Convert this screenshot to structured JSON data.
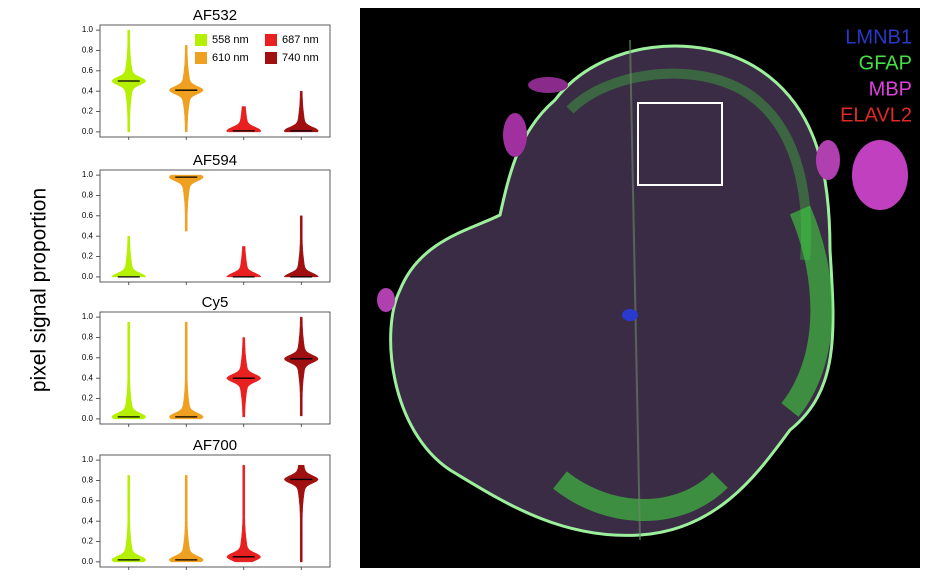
{
  "figure": {
    "ylabel": "pixel signal proportion"
  },
  "chart_data": [
    {
      "type": "violin",
      "title": "AF532",
      "ylim": [
        -0.05,
        1.05
      ],
      "yticks": [
        {
          "value": 0,
          "label": "0.0"
        },
        0.2,
        0.4,
        0.6,
        0.8,
        {
          "value": 1,
          "label": "1.0"
        }
      ],
      "violins": [
        {
          "name": "558 nm",
          "color": "#b4f000",
          "median": 0.5,
          "min": 0,
          "max": 1.0
        },
        {
          "name": "610 nm",
          "color": "#f0a020",
          "median": 0.41,
          "min": 0,
          "max": 0.85
        },
        {
          "name": "687 nm",
          "color": "#e82020",
          "median": 0.01,
          "min": 0,
          "max": 0.25
        },
        {
          "name": "740 nm",
          "color": "#a01010",
          "median": 0.01,
          "min": 0,
          "max": 0.4
        }
      ]
    },
    {
      "type": "violin",
      "title": "AF594",
      "ylim": [
        -0.05,
        1.05
      ],
      "yticks": [
        {
          "value": 0,
          "label": "0.0"
        },
        0.2,
        0.4,
        0.6,
        0.8,
        {
          "value": 1,
          "label": "1.0"
        }
      ],
      "violins": [
        {
          "color": "#b4f000",
          "median": 0.0,
          "min": 0,
          "max": 0.4
        },
        {
          "color": "#f0a020",
          "median": 0.98,
          "min": 0.45,
          "max": 1.0
        },
        {
          "color": "#e82020",
          "median": 0.0,
          "min": 0,
          "max": 0.3
        },
        {
          "color": "#a01010",
          "median": 0.0,
          "min": 0,
          "max": 0.6
        }
      ]
    },
    {
      "type": "violin",
      "title": "Cy5",
      "ylim": [
        -0.05,
        1.05
      ],
      "yticks": [
        {
          "value": 0,
          "label": "0.0"
        },
        0.2,
        0.4,
        0.6,
        0.8,
        {
          "value": 1,
          "label": "1.0"
        }
      ],
      "violins": [
        {
          "color": "#b4f000",
          "median": 0.02,
          "min": 0,
          "max": 0.95
        },
        {
          "color": "#f0a020",
          "median": 0.02,
          "min": 0,
          "max": 0.95
        },
        {
          "color": "#e82020",
          "median": 0.4,
          "min": 0.02,
          "max": 0.8
        },
        {
          "color": "#a01010",
          "median": 0.59,
          "min": 0.03,
          "max": 1.0
        }
      ]
    },
    {
      "type": "violin",
      "title": "AF700",
      "ylim": [
        -0.05,
        1.05
      ],
      "yticks": [
        {
          "value": 0,
          "label": "0.0"
        },
        0.2,
        0.4,
        0.6,
        0.8,
        {
          "value": 1,
          "label": "1.0"
        }
      ],
      "violins": [
        {
          "color": "#b4f000",
          "median": 0.02,
          "min": 0,
          "max": 0.85
        },
        {
          "color": "#f0a020",
          "median": 0.02,
          "min": 0,
          "max": 0.85
        },
        {
          "color": "#e82020",
          "median": 0.05,
          "min": 0,
          "max": 0.95
        },
        {
          "color": "#a01010",
          "median": 0.81,
          "min": 0,
          "max": 0.95
        }
      ]
    }
  ],
  "image": {
    "channels": [
      {
        "name": "LMNB1",
        "color": "#2838c8"
      },
      {
        "name": "GFAP",
        "color": "#44e044"
      },
      {
        "name": "MBP",
        "color": "#e040e0"
      },
      {
        "name": "ELAVL2",
        "color": "#e02828"
      }
    ]
  }
}
